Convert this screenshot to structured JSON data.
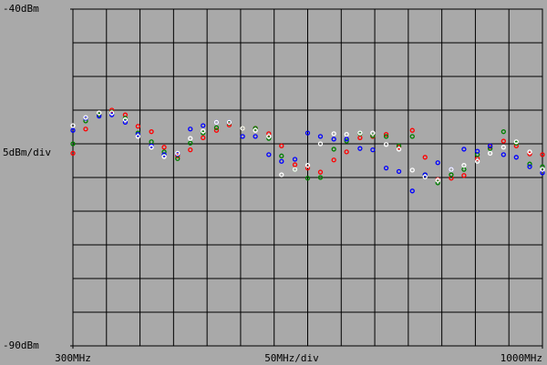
{
  "chart_data": {
    "type": "scatter",
    "xlim": [
      300,
      1000
    ],
    "ylim": [
      -90,
      -40
    ],
    "xticks": [
      {
        "value": 300,
        "label": "300MHz"
      },
      {
        "value": 1000,
        "label": "1000MHz"
      }
    ],
    "yticks": [
      {
        "value": -40,
        "label": "-40dBm"
      },
      {
        "value": -90,
        "label": "-90dBm"
      }
    ],
    "xdivision": {
      "value": 50,
      "label": "50MHz/div"
    },
    "ydivision": {
      "value": 5,
      "label": "5dBm/div"
    },
    "grid": true,
    "x": [
      300,
      319,
      339,
      358,
      378,
      397,
      417,
      436,
      456,
      475,
      494,
      514,
      533,
      553,
      572,
      592,
      611,
      631,
      650,
      669,
      689,
      708,
      728,
      747,
      767,
      786,
      806,
      825,
      844,
      864,
      883,
      903,
      922,
      942,
      961,
      981,
      1000
    ],
    "series": [
      {
        "color": "#ff0000",
        "values": [
          -61.4,
          -57.8,
          -55.7,
          -55.0,
          -55.7,
          -57.4,
          -58.2,
          -60.5,
          -61.8,
          -60.9,
          -59.1,
          -58.0,
          -57.2,
          -57.7,
          -57.7,
          -58.5,
          -60.3,
          -63.1,
          -63.6,
          -64.2,
          -62.4,
          -61.2,
          -59.1,
          -58.9,
          -58.6,
          -60.5,
          -58.0,
          -62.0,
          -65.3,
          -65.1,
          -64.7,
          -62.2,
          -60.4,
          -59.6,
          -60.3,
          -61.5,
          -61.6
        ]
      },
      {
        "color": "#008000",
        "values": [
          -60.0,
          -56.6,
          -55.7,
          -55.3,
          -56.2,
          -58.4,
          -59.7,
          -61.2,
          -62.2,
          -59.9,
          -58.4,
          -57.6,
          -56.9,
          -57.7,
          -57.7,
          -59.2,
          -61.8,
          -63.8,
          -65.1,
          -65.0,
          -60.8,
          -59.6,
          -58.5,
          -58.8,
          -58.9,
          -60.3,
          -58.9,
          -64.6,
          -65.8,
          -64.6,
          -63.8,
          -61.6,
          -60.7,
          -58.2,
          -59.9,
          -63.0,
          -63.4
        ]
      },
      {
        "color": "#0000ff",
        "values": [
          -58.0,
          -56.2,
          -55.9,
          -55.7,
          -56.8,
          -58.6,
          -60.3,
          -61.6,
          -61.5,
          -57.8,
          -57.3,
          -56.8,
          -56.8,
          -58.9,
          -58.9,
          -61.6,
          -62.6,
          -62.3,
          -58.4,
          -58.9,
          -59.3,
          -59.3,
          -60.7,
          -60.9,
          -63.6,
          -64.1,
          -67.0,
          -64.6,
          -62.8,
          -63.8,
          -60.8,
          -61.1,
          -60.3,
          -61.6,
          -62.0,
          -63.4,
          -64.3
        ]
      },
      {
        "color": "#ffffff",
        "values": [
          -57.3,
          -56.1,
          -55.4,
          -55.4,
          -56.4,
          -58.9,
          -60.5,
          -61.9,
          -61.4,
          -59.2,
          -58.1,
          -56.8,
          -56.8,
          -57.7,
          -58.0,
          -58.9,
          -64.6,
          -63.8,
          -63.2,
          -60.0,
          -58.5,
          -58.6,
          -58.4,
          -58.4,
          -60.1,
          -60.8,
          -63.9,
          -64.9,
          -65.4,
          -63.8,
          -63.2,
          -62.6,
          -61.4,
          -60.5,
          -59.7,
          -61.2,
          -63.8
        ]
      }
    ]
  }
}
